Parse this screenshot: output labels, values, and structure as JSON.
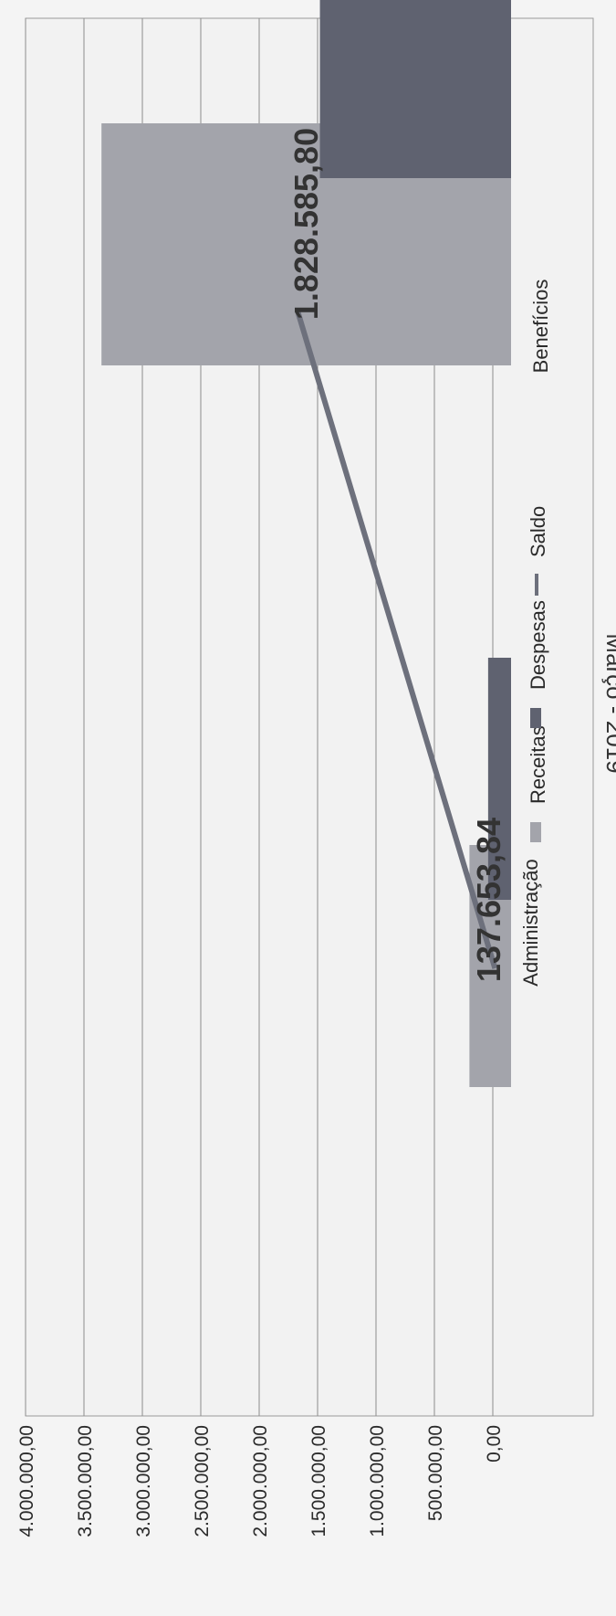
{
  "chart_data": {
    "type": "bar",
    "orientation": "rotated-90",
    "title": "Março - 2019",
    "categories": [
      "Administração",
      "Benefícios"
    ],
    "series": [
      {
        "name": "Receitas",
        "type": "bar",
        "values": [
          200000,
          3350000
        ],
        "color": "#a3a4ab"
      },
      {
        "name": "Despesas",
        "type": "bar",
        "values": [
          40000,
          1480000
        ],
        "color": "#5f6270"
      },
      {
        "name": "Saldo",
        "type": "line",
        "values": [
          137653.84,
          1828585.8
        ],
        "color": "#6d707c"
      }
    ],
    "data_labels": [
      "137.653,84",
      "1.828.585,80"
    ],
    "y_ticks": [
      "0,00",
      "500.000,00",
      "1.000.000,00",
      "1.500.000,00",
      "2.000.000,00",
      "2.500.000,00",
      "3.000.000,00",
      "3.500.000,00",
      "4.000.000,00"
    ],
    "ylim": [
      0,
      4000000
    ],
    "grid": true,
    "legend": "bottom"
  }
}
